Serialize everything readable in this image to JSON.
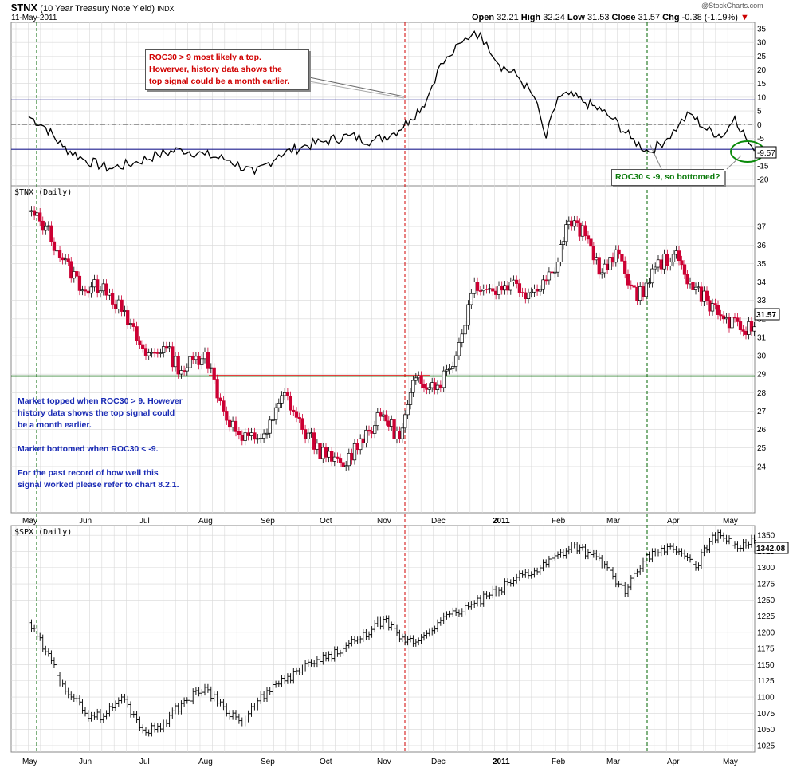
{
  "header": {
    "symbol": "$TNX",
    "name": "(10 Year Treasury Note Yield)",
    "exchange": "INDX",
    "date": "11-May-2011",
    "open_label": "Open",
    "open": "32.21",
    "high_label": "High",
    "high": "32.24",
    "low_label": "Low",
    "low": "31.53",
    "close_label": "Close",
    "close": "31.57",
    "chg_label": "Chg",
    "chg": "-0.38 (-1.19%)",
    "watermark": "@StockCharts.com"
  },
  "panels": {
    "roc": {
      "last_label": "-9.57",
      "ticks": [
        "35",
        "30",
        "25",
        "20",
        "15",
        "10",
        "5",
        "0",
        "-5",
        "-10",
        "-15",
        "-20"
      ]
    },
    "tnx": {
      "title": "$TNX (Daily)",
      "last_label": "31.57",
      "ticks": [
        "37",
        "36",
        "35",
        "34",
        "33",
        "32",
        "31",
        "30",
        "29",
        "28",
        "27",
        "26",
        "25",
        "24"
      ]
    },
    "spx": {
      "title": "$SPX (Daily)",
      "last_label": "1342.08",
      "ticks": [
        "1350",
        "1325",
        "1300",
        "1275",
        "1250",
        "1225",
        "1200",
        "1175",
        "1150",
        "1125",
        "1100",
        "1075",
        "1050",
        "1025"
      ]
    }
  },
  "months": [
    "May",
    "Jun",
    "Jul",
    "Aug",
    "Sep",
    "Oct",
    "Nov",
    "Dec",
    "2011",
    "Feb",
    "Mar",
    "Apr",
    "May"
  ],
  "annotations": {
    "top_note": [
      "ROC30 > 9 most likely a top.",
      "Howerver, history data shows the",
      "top signal could be a month earlier."
    ],
    "bottom_note": "ROC30 < -9, so bottomed?",
    "market_notes": [
      "Market topped when ROC30 > 9. However",
      "history data shows the top signal could",
      "be a month earlier.",
      "",
      "Market bottomed when ROC30 < -9.",
      "",
      "For the past record of how well this",
      "signal worked please refer to chart 8.2.1."
    ]
  },
  "colors": {
    "grid": "#d8d8d8",
    "threshold_line": "#1f1f8f",
    "support_line": "#006600",
    "resistance_line": "#e00000",
    "down_candle": "#cc0033",
    "up_candle": "#000000",
    "signal_top": "#d00000",
    "signal_bottom": "#006600"
  },
  "chart_data": {
    "type": "line",
    "x_months": [
      "May",
      "Jun",
      "Jul",
      "Aug",
      "Sep",
      "Oct",
      "Nov",
      "Dec",
      "2011",
      "Feb",
      "Mar",
      "Apr",
      "May"
    ],
    "panels": [
      {
        "name": "ROC30",
        "type": "line",
        "ylim": [
          -20,
          35
        ],
        "thresholds": [
          9,
          -9
        ],
        "points": [
          [
            0,
            3
          ],
          [
            0.3,
            -1
          ],
          [
            0.6,
            -8
          ],
          [
            1,
            -13
          ],
          [
            1.4,
            -16
          ],
          [
            1.8,
            -14
          ],
          [
            2.2,
            -11
          ],
          [
            2.6,
            -9
          ],
          [
            3,
            -11
          ],
          [
            3.4,
            -13
          ],
          [
            3.8,
            -18
          ],
          [
            4.2,
            -11
          ],
          [
            4.6,
            -8
          ],
          [
            5,
            -6
          ],
          [
            5.4,
            -4
          ],
          [
            5.8,
            -6
          ],
          [
            6.2,
            -3
          ],
          [
            6.5,
            2
          ],
          [
            6.8,
            9
          ],
          [
            7,
            20
          ],
          [
            7.2,
            25
          ],
          [
            7.4,
            30
          ],
          [
            7.6,
            34
          ],
          [
            7.8,
            30
          ],
          [
            8,
            22
          ],
          [
            8.3,
            18
          ],
          [
            8.6,
            10
          ],
          [
            8.8,
            -5
          ],
          [
            9,
            10
          ],
          [
            9.2,
            11
          ],
          [
            9.5,
            8
          ],
          [
            9.8,
            5
          ],
          [
            10,
            2
          ],
          [
            10.3,
            -5
          ],
          [
            10.6,
            -10
          ],
          [
            10.9,
            -5
          ],
          [
            11.1,
            0
          ],
          [
            11.3,
            4
          ],
          [
            11.6,
            -2
          ],
          [
            11.9,
            -4
          ],
          [
            12.1,
            3
          ],
          [
            12.3,
            -5
          ],
          [
            12.45,
            -9.57
          ]
        ]
      },
      {
        "name": "$TNX (Daily)",
        "type": "candlestick",
        "ylim": [
          23,
          38
        ],
        "lines": {
          "support": 28.9
        },
        "points": [
          [
            0,
            37.8
          ],
          [
            0.3,
            37
          ],
          [
            0.6,
            35.2
          ],
          [
            1,
            33.5
          ],
          [
            1.3,
            33.9
          ],
          [
            1.6,
            32.4
          ],
          [
            2,
            30
          ],
          [
            2.3,
            30.5
          ],
          [
            2.6,
            29.2
          ],
          [
            3,
            30.2
          ],
          [
            3.3,
            27
          ],
          [
            3.6,
            25.4
          ],
          [
            4,
            25.8
          ],
          [
            4.3,
            28
          ],
          [
            4.6,
            26
          ],
          [
            5,
            24.5
          ],
          [
            5.3,
            24
          ],
          [
            5.6,
            25.5
          ],
          [
            6,
            26.8
          ],
          [
            6.3,
            25.5
          ],
          [
            6.6,
            28.8
          ],
          [
            7,
            28.4
          ],
          [
            7.3,
            30
          ],
          [
            7.6,
            34
          ],
          [
            7.9,
            33.5
          ],
          [
            8.2,
            34
          ],
          [
            8.5,
            33.4
          ],
          [
            8.9,
            34.5
          ],
          [
            9.2,
            37.3
          ],
          [
            9.5,
            36.5
          ],
          [
            9.8,
            34.5
          ],
          [
            10.1,
            35.5
          ],
          [
            10.4,
            33
          ],
          [
            10.7,
            34.8
          ],
          [
            11,
            35.5
          ],
          [
            11.3,
            34
          ],
          [
            11.6,
            33
          ],
          [
            11.9,
            32
          ],
          [
            12.2,
            31.4
          ],
          [
            12.45,
            31.57
          ]
        ]
      },
      {
        "name": "$SPX (Daily)",
        "type": "ohlc",
        "ylim": [
          1015,
          1365
        ],
        "points": [
          [
            0,
            1215
          ],
          [
            0.3,
            1170
          ],
          [
            0.6,
            1120
          ],
          [
            1,
            1075
          ],
          [
            1.3,
            1070
          ],
          [
            1.6,
            1100
          ],
          [
            2,
            1045
          ],
          [
            2.3,
            1060
          ],
          [
            2.6,
            1090
          ],
          [
            3,
            1115
          ],
          [
            3.3,
            1085
          ],
          [
            3.6,
            1060
          ],
          [
            4,
            1110
          ],
          [
            4.3,
            1125
          ],
          [
            4.6,
            1145
          ],
          [
            5,
            1160
          ],
          [
            5.3,
            1175
          ],
          [
            5.6,
            1190
          ],
          [
            6,
            1220
          ],
          [
            6.3,
            1190
          ],
          [
            6.6,
            1185
          ],
          [
            7,
            1215
          ],
          [
            7.3,
            1230
          ],
          [
            7.6,
            1245
          ],
          [
            8,
            1265
          ],
          [
            8.3,
            1285
          ],
          [
            8.6,
            1295
          ],
          [
            9,
            1320
          ],
          [
            9.3,
            1335
          ],
          [
            9.6,
            1320
          ],
          [
            9.9,
            1300
          ],
          [
            10.2,
            1260
          ],
          [
            10.5,
            1310
          ],
          [
            10.8,
            1330
          ],
          [
            11.1,
            1325
          ],
          [
            11.4,
            1300
          ],
          [
            11.7,
            1350
          ],
          [
            12,
            1345
          ],
          [
            12.2,
            1330
          ],
          [
            12.45,
            1342
          ]
        ]
      }
    ]
  }
}
